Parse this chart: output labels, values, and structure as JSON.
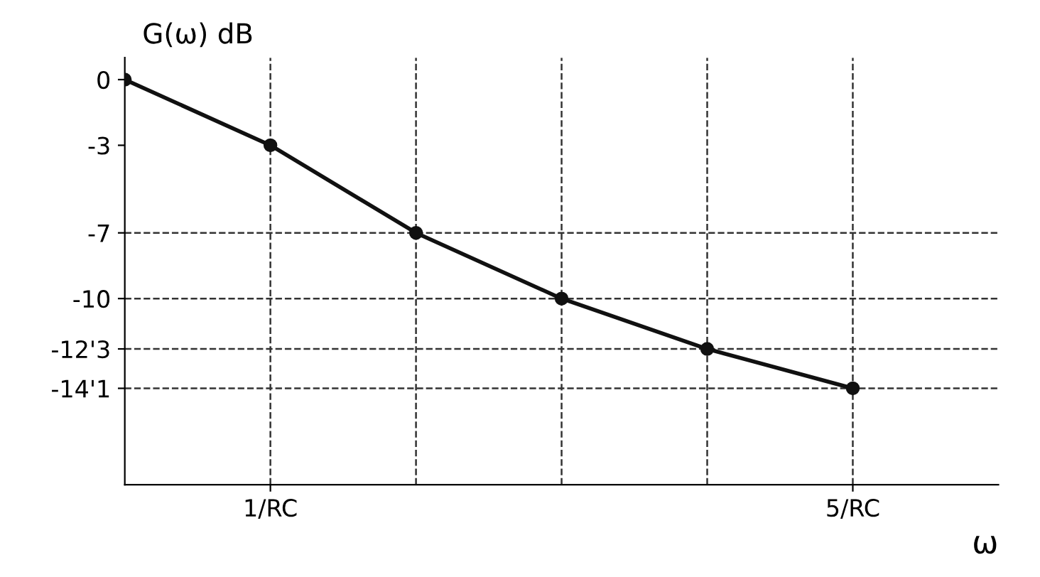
{
  "chart_data": {
    "type": "line",
    "xlabel": "ω",
    "ylabel": "G(ω) dB",
    "x": [
      0,
      1,
      2,
      3,
      4,
      5
    ],
    "series": [
      {
        "color": "#111111",
        "values": [
          0,
          -3,
          -7,
          -10,
          -12.3,
          -14.1
        ]
      }
    ],
    "marker": "circle",
    "line_style": "solid",
    "grid": false,
    "legend": false,
    "xlim": [
      0,
      6
    ],
    "xticks": [
      {
        "value": 1,
        "label": "1/RC"
      },
      {
        "value": 5,
        "label": "5/RC"
      }
    ],
    "ylim": [
      -18.5,
      1
    ],
    "yticks": [
      0,
      -3,
      -7,
      -10,
      {
        "value": -12.3,
        "label": "-12'3"
      },
      {
        "value": -14.1,
        "label": "-14'1"
      }
    ],
    "ref_lines": [
      {
        "axis": "x",
        "value": 1,
        "line_style": "dashed",
        "color": "#333333"
      },
      {
        "axis": "x",
        "value": 2,
        "line_style": "dashed",
        "color": "#333333"
      },
      {
        "axis": "x",
        "value": 3,
        "line_style": "dashed",
        "color": "#333333"
      },
      {
        "axis": "x",
        "value": 4,
        "line_style": "dashed",
        "color": "#333333"
      },
      {
        "axis": "x",
        "value": 5,
        "line_style": "dashed",
        "color": "#333333"
      },
      {
        "axis": "y",
        "value": -7,
        "line_style": "dashed",
        "color": "#333333"
      },
      {
        "axis": "y",
        "value": -10,
        "line_style": "dashed",
        "color": "#333333"
      },
      {
        "axis": "y",
        "value": -12.3,
        "line_style": "dashed",
        "color": "#333333"
      },
      {
        "axis": "y",
        "value": -14.1,
        "line_style": "dashed",
        "color": "#333333"
      }
    ]
  }
}
